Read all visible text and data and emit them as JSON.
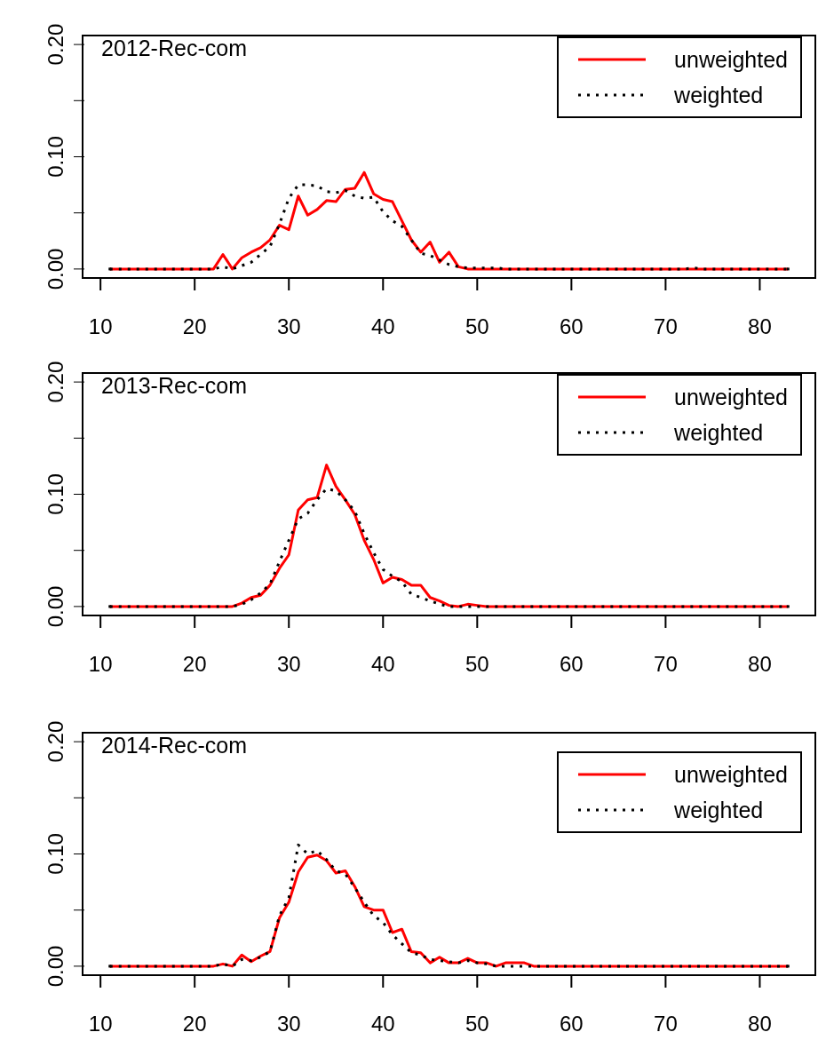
{
  "chart_data": [
    {
      "type": "line",
      "title": "2012-Rec-com",
      "grid": false,
      "xlim": [
        8.1,
        85.9
      ],
      "xticks": [
        10,
        20,
        30,
        40,
        50,
        60,
        70,
        80
      ],
      "ylim": [
        -0.008,
        0.208
      ],
      "yticks": [
        {
          "value": 0,
          "label": "0.00"
        },
        {
          "value": 0.05,
          "label": null
        },
        {
          "value": 0.1,
          "label": "0.10"
        },
        {
          "value": 0.15,
          "label": null
        },
        {
          "value": 0.2,
          "label": "0.20"
        }
      ],
      "legend": "top right",
      "marker": "none",
      "series": [
        {
          "name": "unweighted",
          "color": "#ff0000",
          "line_style": "solid",
          "x": [
            11,
            15,
            20,
            22,
            23,
            24,
            25,
            26,
            27,
            28,
            29,
            30,
            31,
            32,
            33,
            34,
            35,
            36,
            37,
            38,
            39,
            40,
            41,
            42,
            43,
            44,
            45,
            46,
            47,
            48,
            49,
            55,
            60,
            70,
            83
          ],
          "values": [
            0,
            0,
            0,
            0,
            0.013,
            0,
            0.01,
            0.015,
            0.019,
            0.026,
            0.039,
            0.035,
            0.065,
            0.048,
            0.053,
            0.061,
            0.06,
            0.071,
            0.072,
            0.086,
            0.067,
            0.062,
            0.06,
            0.043,
            0.026,
            0.015,
            0.024,
            0.006,
            0.015,
            0.002,
            0,
            0,
            0,
            0,
            0
          ]
        },
        {
          "name": "weighted",
          "color": "#000000",
          "line_style": "dotted",
          "x": [
            11,
            15,
            20,
            22,
            23,
            24,
            25,
            26,
            27,
            28,
            29,
            30,
            31,
            32,
            33,
            34,
            35,
            36,
            37,
            38,
            39,
            40,
            41,
            42,
            43,
            44,
            45,
            46,
            47,
            48,
            49,
            50,
            51,
            52,
            53,
            60,
            72,
            73,
            74,
            83
          ],
          "values": [
            0,
            0,
            0,
            0,
            0.002,
            0,
            0.003,
            0.006,
            0.013,
            0.02,
            0.04,
            0.063,
            0.075,
            0.075,
            0.074,
            0.069,
            0.068,
            0.07,
            0.065,
            0.063,
            0.064,
            0.051,
            0.043,
            0.038,
            0.026,
            0.014,
            0.012,
            0.008,
            0.004,
            0.002,
            0.001,
            0.001,
            0.001,
            0.001,
            0,
            0,
            0,
            0.001,
            0,
            0
          ]
        }
      ]
    },
    {
      "type": "line",
      "title": "2013-Rec-com",
      "grid": false,
      "xlim": [
        8.1,
        85.9
      ],
      "xticks": [
        10,
        20,
        30,
        40,
        50,
        60,
        70,
        80
      ],
      "ylim": [
        -0.008,
        0.208
      ],
      "yticks": [
        {
          "value": 0,
          "label": "0.00"
        },
        {
          "value": 0.05,
          "label": null
        },
        {
          "value": 0.1,
          "label": "0.10"
        },
        {
          "value": 0.15,
          "label": null
        },
        {
          "value": 0.2,
          "label": "0.20"
        }
      ],
      "legend": "top right",
      "marker": "none",
      "series": [
        {
          "name": "unweighted",
          "color": "#ff0000",
          "line_style": "solid",
          "x": [
            11,
            15,
            20,
            24,
            25,
            26,
            27,
            28,
            29,
            30,
            31,
            32,
            33,
            34,
            35,
            36,
            37,
            38,
            39,
            40,
            41,
            42,
            43,
            44,
            45,
            46,
            47,
            48,
            49,
            50,
            51,
            60,
            70,
            83
          ],
          "values": [
            0,
            0,
            0,
            0,
            0.003,
            0.008,
            0.01,
            0.019,
            0.034,
            0.046,
            0.086,
            0.095,
            0.097,
            0.126,
            0.107,
            0.095,
            0.082,
            0.059,
            0.042,
            0.021,
            0.026,
            0.024,
            0.019,
            0.019,
            0.008,
            0.005,
            0.001,
            0,
            0.002,
            0.001,
            0,
            0,
            0,
            0
          ]
        },
        {
          "name": "weighted",
          "color": "#000000",
          "line_style": "dotted",
          "x": [
            11,
            15,
            20,
            24,
            25,
            26,
            27,
            28,
            29,
            30,
            31,
            32,
            33,
            34,
            35,
            36,
            37,
            38,
            39,
            40,
            41,
            42,
            43,
            44,
            45,
            46,
            47,
            48,
            60,
            70,
            83
          ],
          "values": [
            0,
            0,
            0,
            0,
            0.002,
            0.006,
            0.012,
            0.02,
            0.04,
            0.059,
            0.078,
            0.083,
            0.095,
            0.105,
            0.103,
            0.095,
            0.085,
            0.065,
            0.048,
            0.033,
            0.027,
            0.022,
            0.011,
            0.008,
            0.005,
            0.002,
            0,
            0,
            0,
            0,
            0
          ]
        }
      ]
    },
    {
      "type": "line",
      "title": "2014-Rec-com",
      "grid": false,
      "xlim": [
        8.1,
        85.9
      ],
      "xticks": [
        10,
        20,
        30,
        40,
        50,
        60,
        70,
        80
      ],
      "ylim": [
        -0.008,
        0.208
      ],
      "yticks": [
        {
          "value": 0,
          "label": "0.00"
        },
        {
          "value": 0.05,
          "label": null
        },
        {
          "value": 0.1,
          "label": "0.10"
        },
        {
          "value": 0.15,
          "label": null
        },
        {
          "value": 0.2,
          "label": "0.20"
        }
      ],
      "legend": "top right",
      "marker": "none",
      "series": [
        {
          "name": "unweighted",
          "color": "#ff0000",
          "line_style": "solid",
          "x": [
            11,
            15,
            20,
            22,
            23,
            24,
            25,
            26,
            27,
            28,
            29,
            30,
            31,
            32,
            33,
            34,
            35,
            36,
            37,
            38,
            39,
            40,
            41,
            42,
            43,
            44,
            45,
            46,
            47,
            48,
            49,
            50,
            51,
            52,
            53,
            54,
            55,
            56,
            60,
            70,
            83
          ],
          "values": [
            0,
            0,
            0,
            0,
            0.002,
            0,
            0.01,
            0.004,
            0.009,
            0.013,
            0.043,
            0.057,
            0.084,
            0.097,
            0.099,
            0.094,
            0.083,
            0.085,
            0.071,
            0.053,
            0.05,
            0.05,
            0.03,
            0.033,
            0.013,
            0.012,
            0.003,
            0.008,
            0.003,
            0.003,
            0.007,
            0.003,
            0.003,
            0,
            0.003,
            0.003,
            0.003,
            0,
            0,
            0,
            0
          ]
        },
        {
          "name": "weighted",
          "color": "#000000",
          "line_style": "dotted",
          "x": [
            11,
            15,
            20,
            22,
            23,
            24,
            25,
            26,
            27,
            28,
            29,
            30,
            31,
            32,
            33,
            34,
            35,
            36,
            37,
            38,
            39,
            40,
            41,
            42,
            43,
            44,
            45,
            46,
            47,
            48,
            49,
            50,
            51,
            52,
            60,
            70,
            83
          ],
          "values": [
            0,
            0,
            0,
            0,
            0.002,
            0,
            0.006,
            0.005,
            0.008,
            0.013,
            0.045,
            0.061,
            0.108,
            0.1,
            0.103,
            0.095,
            0.085,
            0.082,
            0.07,
            0.057,
            0.045,
            0.039,
            0.028,
            0.02,
            0.012,
            0.01,
            0.006,
            0.005,
            0.004,
            0.003,
            0.005,
            0.003,
            0.002,
            0,
            0,
            0,
            0
          ]
        }
      ]
    }
  ]
}
